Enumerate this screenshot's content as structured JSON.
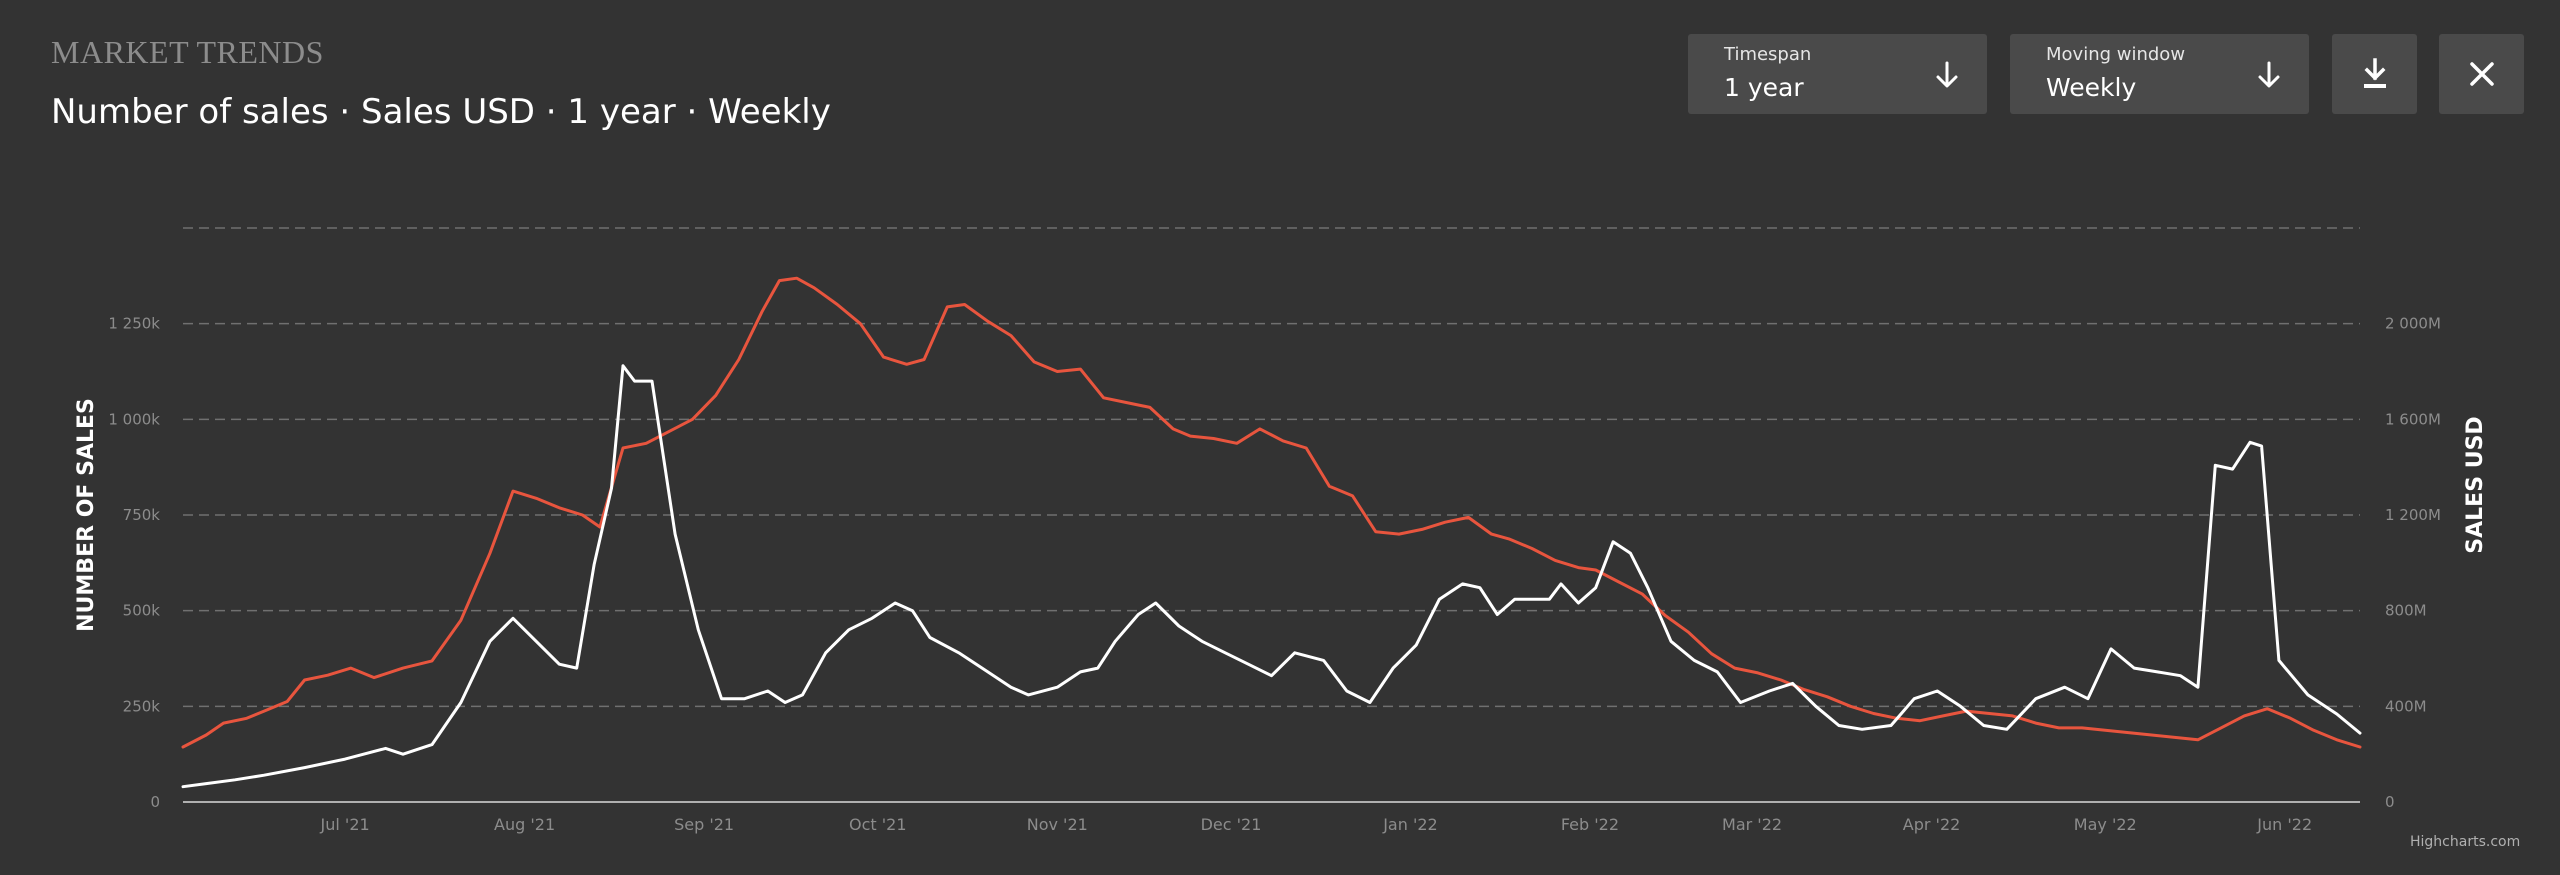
{
  "header": {
    "kicker": "MARKET TRENDS",
    "title": "Number of sales · Sales USD · 1 year · Weekly"
  },
  "controls": {
    "timespan": {
      "label": "Timespan",
      "value": "1 year",
      "icon": "arrow-down-icon"
    },
    "moving_window": {
      "label": "Moving window",
      "value": "Weekly",
      "icon": "arrow-down-icon"
    },
    "download": {
      "icon": "download-icon"
    },
    "close": {
      "icon": "close-icon"
    }
  },
  "credits": "Highcharts.com",
  "colors": {
    "background": "#333333",
    "grid": "#707070",
    "axis_text": "#8c8c8c",
    "sales_count_line": "#ffffff",
    "sales_usd_line": "#e8553e"
  },
  "chart_data": {
    "type": "line",
    "grid": "dashed horizontal",
    "x_tick_labels": [
      "Jul '21",
      "Aug '21",
      "Sep '21",
      "Oct '21",
      "Nov '21",
      "Dec '21",
      "Jan '22",
      "Feb '22",
      "Mar '22",
      "Apr '22",
      "May '22",
      "Jun '22"
    ],
    "x_range": [
      "2021-06-17",
      "2022-06-28"
    ],
    "y_axis_left": {
      "label": "NUMBER OF SALES",
      "range": [
        0,
        1500000
      ],
      "ticks": [
        0,
        250000,
        500000,
        750000,
        1000000,
        1250000
      ],
      "tick_labels": [
        "0",
        "250k",
        "500k",
        "750k",
        "1 000k",
        "1 250k"
      ]
    },
    "y_axis_right": {
      "label": "SALES USD",
      "range": [
        0,
        2400000000
      ],
      "ticks": [
        0,
        400000000,
        800000000,
        1200000000,
        1600000000,
        2000000000
      ],
      "tick_labels": [
        "0",
        "400M",
        "800M",
        "1 200M",
        "1 600M",
        "2 000M"
      ]
    },
    "series": [
      {
        "axis": "left",
        "color": "#ffffff",
        "points": [
          [
            "2021-06-17",
            40000
          ],
          [
            "2021-06-21",
            48000
          ],
          [
            "2021-06-26",
            58000
          ],
          [
            "2021-07-01",
            70000
          ],
          [
            "2021-07-08",
            90000
          ],
          [
            "2021-07-15",
            112000
          ],
          [
            "2021-07-22",
            140000
          ],
          [
            "2021-07-25",
            125000
          ],
          [
            "2021-07-30",
            150000
          ],
          [
            "2021-08-04",
            260000
          ],
          [
            "2021-08-09",
            420000
          ],
          [
            "2021-08-13",
            480000
          ],
          [
            "2021-08-17",
            420000
          ],
          [
            "2021-08-21",
            360000
          ],
          [
            "2021-08-24",
            350000
          ],
          [
            "2021-08-27",
            620000
          ],
          [
            "2021-08-30",
            820000
          ],
          [
            "2021-09-01",
            1140000
          ],
          [
            "2021-09-03",
            1100000
          ],
          [
            "2021-09-06",
            1100000
          ],
          [
            "2021-09-10",
            700000
          ],
          [
            "2021-09-14",
            450000
          ],
          [
            "2021-09-18",
            270000
          ],
          [
            "2021-09-22",
            270000
          ],
          [
            "2021-09-26",
            290000
          ],
          [
            "2021-09-29",
            260000
          ],
          [
            "2021-10-02",
            280000
          ],
          [
            "2021-10-06",
            390000
          ],
          [
            "2021-10-10",
            450000
          ],
          [
            "2021-10-14",
            480000
          ],
          [
            "2021-10-18",
            520000
          ],
          [
            "2021-10-21",
            500000
          ],
          [
            "2021-10-24",
            430000
          ],
          [
            "2021-10-29",
            390000
          ],
          [
            "2021-11-03",
            340000
          ],
          [
            "2021-11-07",
            300000
          ],
          [
            "2021-11-10",
            280000
          ],
          [
            "2021-11-15",
            300000
          ],
          [
            "2021-11-19",
            340000
          ],
          [
            "2021-11-22",
            350000
          ],
          [
            "2021-11-25",
            420000
          ],
          [
            "2021-11-29",
            490000
          ],
          [
            "2021-12-02",
            520000
          ],
          [
            "2021-12-06",
            460000
          ],
          [
            "2021-12-10",
            420000
          ],
          [
            "2021-12-14",
            390000
          ],
          [
            "2021-12-18",
            360000
          ],
          [
            "2021-12-22",
            330000
          ],
          [
            "2021-12-26",
            390000
          ],
          [
            "2021-12-31",
            370000
          ],
          [
            "2022-01-04",
            290000
          ],
          [
            "2022-01-08",
            260000
          ],
          [
            "2022-01-12",
            350000
          ],
          [
            "2022-01-16",
            410000
          ],
          [
            "2022-01-20",
            530000
          ],
          [
            "2022-01-24",
            570000
          ],
          [
            "2022-01-27",
            560000
          ],
          [
            "2022-01-30",
            490000
          ],
          [
            "2022-02-02",
            530000
          ],
          [
            "2022-02-05",
            530000
          ],
          [
            "2022-02-08",
            530000
          ],
          [
            "2022-02-10",
            570000
          ],
          [
            "2022-02-13",
            520000
          ],
          [
            "2022-02-16",
            560000
          ],
          [
            "2022-02-19",
            680000
          ],
          [
            "2022-02-22",
            650000
          ],
          [
            "2022-02-25",
            560000
          ],
          [
            "2022-03-01",
            420000
          ],
          [
            "2022-03-05",
            370000
          ],
          [
            "2022-03-09",
            340000
          ],
          [
            "2022-03-13",
            260000
          ],
          [
            "2022-03-18",
            290000
          ],
          [
            "2022-03-22",
            310000
          ],
          [
            "2022-03-26",
            250000
          ],
          [
            "2022-03-30",
            200000
          ],
          [
            "2022-04-03",
            190000
          ],
          [
            "2022-04-08",
            200000
          ],
          [
            "2022-04-12",
            270000
          ],
          [
            "2022-04-16",
            290000
          ],
          [
            "2022-04-20",
            250000
          ],
          [
            "2022-04-24",
            200000
          ],
          [
            "2022-04-28",
            190000
          ],
          [
            "2022-05-03",
            270000
          ],
          [
            "2022-05-08",
            300000
          ],
          [
            "2022-05-12",
            270000
          ],
          [
            "2022-05-16",
            400000
          ],
          [
            "2022-05-20",
            350000
          ],
          [
            "2022-05-24",
            340000
          ],
          [
            "2022-05-28",
            330000
          ],
          [
            "2022-05-31",
            300000
          ],
          [
            "2022-06-03",
            880000
          ],
          [
            "2022-06-06",
            870000
          ],
          [
            "2022-06-09",
            940000
          ],
          [
            "2022-06-11",
            930000
          ],
          [
            "2022-06-14",
            370000
          ],
          [
            "2022-06-19",
            280000
          ],
          [
            "2022-06-24",
            230000
          ],
          [
            "2022-06-28",
            180000
          ]
        ]
      },
      {
        "axis": "right",
        "color": "#e8553e",
        "points": [
          [
            "2021-06-17",
            230000000
          ],
          [
            "2021-06-21",
            280000000
          ],
          [
            "2021-06-24",
            330000000
          ],
          [
            "2021-06-28",
            350000000
          ],
          [
            "2021-07-01",
            380000000
          ],
          [
            "2021-07-05",
            420000000
          ],
          [
            "2021-07-08",
            510000000
          ],
          [
            "2021-07-12",
            530000000
          ],
          [
            "2021-07-16",
            560000000
          ],
          [
            "2021-07-20",
            520000000
          ],
          [
            "2021-07-25",
            560000000
          ],
          [
            "2021-07-30",
            590000000
          ],
          [
            "2021-08-04",
            760000000
          ],
          [
            "2021-08-09",
            1040000000
          ],
          [
            "2021-08-13",
            1300000000
          ],
          [
            "2021-08-17",
            1270000000
          ],
          [
            "2021-08-21",
            1230000000
          ],
          [
            "2021-08-25",
            1200000000
          ],
          [
            "2021-08-28",
            1150000000
          ],
          [
            "2021-09-01",
            1480000000
          ],
          [
            "2021-09-05",
            1500000000
          ],
          [
            "2021-09-09",
            1550000000
          ],
          [
            "2021-09-13",
            1600000000
          ],
          [
            "2021-09-17",
            1700000000
          ],
          [
            "2021-09-21",
            1850000000
          ],
          [
            "2021-09-25",
            2050000000
          ],
          [
            "2021-09-28",
            2180000000
          ],
          [
            "2021-10-01",
            2190000000
          ],
          [
            "2021-10-04",
            2150000000
          ],
          [
            "2021-10-08",
            2080000000
          ],
          [
            "2021-10-12",
            2000000000
          ],
          [
            "2021-10-16",
            1860000000
          ],
          [
            "2021-10-20",
            1830000000
          ],
          [
            "2021-10-23",
            1850000000
          ],
          [
            "2021-10-27",
            2070000000
          ],
          [
            "2021-10-30",
            2080000000
          ],
          [
            "2021-11-03",
            2010000000
          ],
          [
            "2021-11-07",
            1950000000
          ],
          [
            "2021-11-11",
            1840000000
          ],
          [
            "2021-11-15",
            1800000000
          ],
          [
            "2021-11-19",
            1810000000
          ],
          [
            "2021-11-23",
            1690000000
          ],
          [
            "2021-11-27",
            1670000000
          ],
          [
            "2021-12-01",
            1650000000
          ],
          [
            "2021-12-05",
            1560000000
          ],
          [
            "2021-12-08",
            1530000000
          ],
          [
            "2021-12-12",
            1520000000
          ],
          [
            "2021-12-16",
            1500000000
          ],
          [
            "2021-12-20",
            1560000000
          ],
          [
            "2021-12-24",
            1510000000
          ],
          [
            "2021-12-28",
            1480000000
          ],
          [
            "2022-01-01",
            1320000000
          ],
          [
            "2022-01-05",
            1280000000
          ],
          [
            "2022-01-09",
            1130000000
          ],
          [
            "2022-01-13",
            1120000000
          ],
          [
            "2022-01-17",
            1140000000
          ],
          [
            "2022-01-21",
            1170000000
          ],
          [
            "2022-01-25",
            1190000000
          ],
          [
            "2022-01-29",
            1120000000
          ],
          [
            "2022-02-01",
            1100000000
          ],
          [
            "2022-02-05",
            1060000000
          ],
          [
            "2022-02-09",
            1010000000
          ],
          [
            "2022-02-13",
            980000000
          ],
          [
            "2022-02-16",
            970000000
          ],
          [
            "2022-02-20",
            920000000
          ],
          [
            "2022-02-24",
            870000000
          ],
          [
            "2022-02-28",
            780000000
          ],
          [
            "2022-03-04",
            710000000
          ],
          [
            "2022-03-08",
            620000000
          ],
          [
            "2022-03-12",
            560000000
          ],
          [
            "2022-03-16",
            540000000
          ],
          [
            "2022-03-20",
            510000000
          ],
          [
            "2022-03-24",
            470000000
          ],
          [
            "2022-03-28",
            440000000
          ],
          [
            "2022-04-01",
            400000000
          ],
          [
            "2022-04-05",
            370000000
          ],
          [
            "2022-04-09",
            350000000
          ],
          [
            "2022-04-13",
            340000000
          ],
          [
            "2022-04-17",
            360000000
          ],
          [
            "2022-04-21",
            380000000
          ],
          [
            "2022-04-25",
            370000000
          ],
          [
            "2022-04-29",
            360000000
          ],
          [
            "2022-05-03",
            330000000
          ],
          [
            "2022-05-07",
            310000000
          ],
          [
            "2022-05-11",
            310000000
          ],
          [
            "2022-05-15",
            300000000
          ],
          [
            "2022-05-19",
            290000000
          ],
          [
            "2022-05-23",
            280000000
          ],
          [
            "2022-05-27",
            270000000
          ],
          [
            "2022-05-31",
            260000000
          ],
          [
            "2022-06-04",
            310000000
          ],
          [
            "2022-06-08",
            360000000
          ],
          [
            "2022-06-12",
            390000000
          ],
          [
            "2022-06-16",
            350000000
          ],
          [
            "2022-06-20",
            300000000
          ],
          [
            "2022-06-24",
            260000000
          ],
          [
            "2022-06-28",
            230000000
          ]
        ]
      }
    ]
  }
}
